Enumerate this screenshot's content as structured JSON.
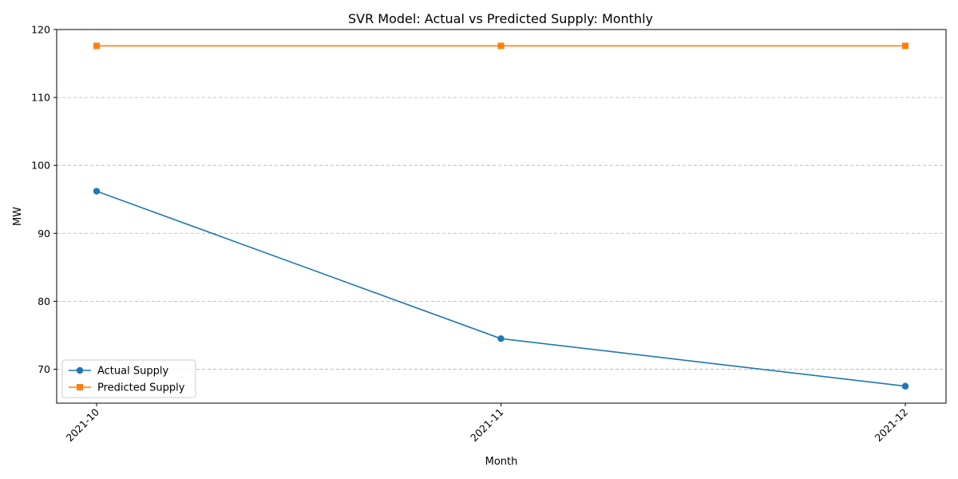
{
  "chart_data": {
    "type": "line",
    "title": "SVR Model: Actual vs Predicted Supply: Monthly",
    "xlabel": "Month",
    "ylabel": "MW",
    "categories": [
      "2021-10",
      "2021-11",
      "2021-12"
    ],
    "ylim": [
      65,
      120
    ],
    "yticks": [
      70,
      80,
      90,
      100,
      110,
      120
    ],
    "grid": "horizontal dashed",
    "legend_position": "lower-left",
    "series": [
      {
        "name": "Actual Supply",
        "values": [
          96.2,
          74.5,
          67.5
        ],
        "color": "#1f77b4",
        "marker": "circle"
      },
      {
        "name": "Predicted Supply",
        "values": [
          117.6,
          117.6,
          117.6
        ],
        "color": "#ff7f0e",
        "marker": "square"
      }
    ]
  }
}
